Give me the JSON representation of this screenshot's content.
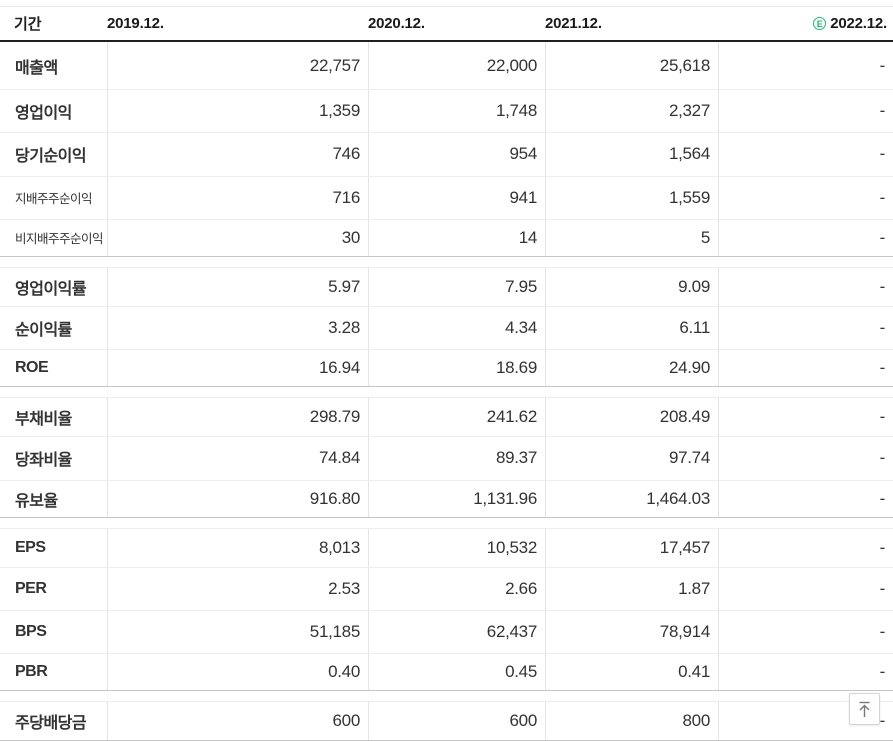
{
  "colors": {
    "estimate_green": "#20b96e"
  },
  "header": {
    "period_label": "기간",
    "columns": [
      "2019.12.",
      "2020.12.",
      "2021.12.",
      "2022.12."
    ],
    "estimate_badge": "E"
  },
  "table": {
    "groups": [
      {
        "rows": [
          {
            "label": "매출액",
            "sub": false,
            "values": [
              "22,757",
              "22,000",
              "25,618",
              "-"
            ]
          },
          {
            "label": "영업이익",
            "sub": false,
            "values": [
              "1,359",
              "1,748",
              "2,327",
              "-"
            ]
          },
          {
            "label": "당기순이익",
            "sub": false,
            "values": [
              "746",
              "954",
              "1,564",
              "-"
            ]
          },
          {
            "label": "지배주주순이익",
            "sub": true,
            "values": [
              "716",
              "941",
              "1,559",
              "-"
            ]
          },
          {
            "label": "비지배주주순이익",
            "sub": true,
            "values": [
              "30",
              "14",
              "5",
              "-"
            ]
          }
        ]
      },
      {
        "rows": [
          {
            "label": "영업이익률",
            "sub": false,
            "values": [
              "5.97",
              "7.95",
              "9.09",
              "-"
            ]
          },
          {
            "label": "순이익률",
            "sub": false,
            "values": [
              "3.28",
              "4.34",
              "6.11",
              "-"
            ]
          },
          {
            "label": "ROE",
            "sub": false,
            "values": [
              "16.94",
              "18.69",
              "24.90",
              "-"
            ]
          }
        ]
      },
      {
        "rows": [
          {
            "label": "부채비율",
            "sub": false,
            "values": [
              "298.79",
              "241.62",
              "208.49",
              "-"
            ]
          },
          {
            "label": "당좌비율",
            "sub": false,
            "values": [
              "74.84",
              "89.37",
              "97.74",
              "-"
            ]
          },
          {
            "label": "유보율",
            "sub": false,
            "values": [
              "916.80",
              "1,131.96",
              "1,464.03",
              "-"
            ]
          }
        ]
      },
      {
        "rows": [
          {
            "label": "EPS",
            "sub": false,
            "values": [
              "8,013",
              "10,532",
              "17,457",
              "-"
            ]
          },
          {
            "label": "PER",
            "sub": false,
            "values": [
              "2.53",
              "2.66",
              "1.87",
              "-"
            ]
          },
          {
            "label": "BPS",
            "sub": false,
            "values": [
              "51,185",
              "62,437",
              "78,914",
              "-"
            ]
          },
          {
            "label": "PBR",
            "sub": false,
            "values": [
              "0.40",
              "0.45",
              "0.41",
              "-"
            ]
          }
        ]
      },
      {
        "rows": [
          {
            "label": "주당배당금",
            "sub": false,
            "values": [
              "600",
              "600",
              "800",
              "-"
            ]
          }
        ]
      }
    ]
  },
  "scroll_top_button": {
    "icon": "arrow-up-to-top"
  }
}
